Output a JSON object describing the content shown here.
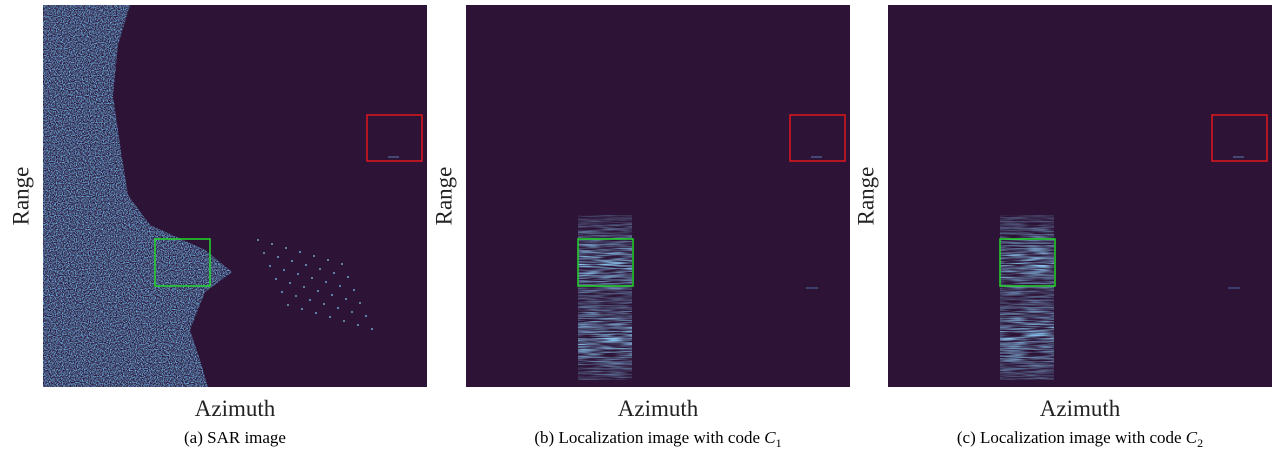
{
  "panels": [
    {
      "y_label": "Range",
      "x_label": "Azimuth",
      "caption": {
        "text": "(a) SAR image"
      }
    },
    {
      "y_label": "Range",
      "x_label": "Azimuth",
      "caption": {
        "text": "(b) Localization image with code ",
        "symbol": "C",
        "subscript": "1"
      }
    },
    {
      "y_label": "Range",
      "x_label": "Azimuth",
      "caption": {
        "text": "(c) Localization image with code ",
        "symbol": "C",
        "subscript": "2"
      }
    }
  ]
}
